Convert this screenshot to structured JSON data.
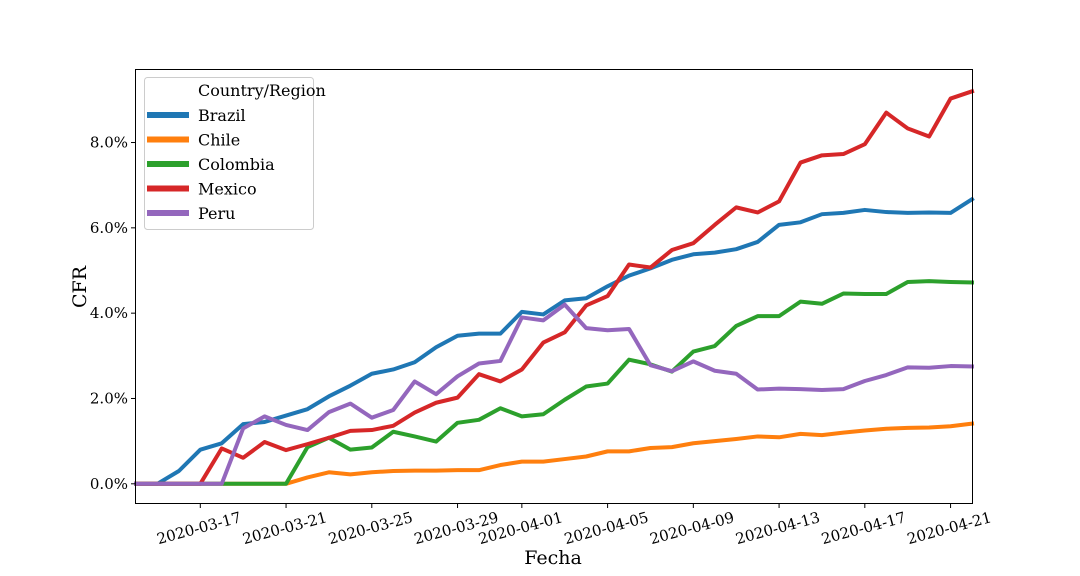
{
  "chart_data": {
    "type": "line",
    "xlabel": "Fecha",
    "ylabel": "CFR",
    "x": [
      "2020-03-14",
      "2020-03-15",
      "2020-03-16",
      "2020-03-17",
      "2020-03-18",
      "2020-03-19",
      "2020-03-20",
      "2020-03-21",
      "2020-03-22",
      "2020-03-23",
      "2020-03-24",
      "2020-03-25",
      "2020-03-26",
      "2020-03-27",
      "2020-03-28",
      "2020-03-29",
      "2020-03-30",
      "2020-03-31",
      "2020-04-01",
      "2020-04-02",
      "2020-04-03",
      "2020-04-04",
      "2020-04-05",
      "2020-04-06",
      "2020-04-07",
      "2020-04-08",
      "2020-04-09",
      "2020-04-10",
      "2020-04-11",
      "2020-04-12",
      "2020-04-13",
      "2020-04-14",
      "2020-04-15",
      "2020-04-16",
      "2020-04-17",
      "2020-04-18",
      "2020-04-19",
      "2020-04-20",
      "2020-04-21",
      "2020-04-22"
    ],
    "xticks": [
      "2020-03-17",
      "2020-03-21",
      "2020-03-25",
      "2020-03-29",
      "2020-04-01",
      "2020-04-05",
      "2020-04-09",
      "2020-04-13",
      "2020-04-17",
      "2020-04-21"
    ],
    "xlim": [
      "2020-03-14",
      "2020-04-22"
    ],
    "ylim": [
      -0.45,
      9.7
    ],
    "yticks": [
      0,
      2,
      4,
      6,
      8
    ],
    "ytick_labels": [
      "0.0%",
      "2.0%",
      "4.0%",
      "6.0%",
      "8.0%"
    ],
    "legend_title": "Country/Region",
    "legend_position": "top-left",
    "grid": false,
    "series": [
      {
        "name": "Brazil",
        "color": "#1f77b4",
        "values": [
          0,
          0,
          0.3,
          0.8,
          0.95,
          1.4,
          1.45,
          1.6,
          1.75,
          2.05,
          2.3,
          2.58,
          2.68,
          2.85,
          3.2,
          3.47,
          3.52,
          3.52,
          4.03,
          3.97,
          4.3,
          4.35,
          4.63,
          4.88,
          5.05,
          5.25,
          5.38,
          5.42,
          5.5,
          5.67,
          6.07,
          6.13,
          6.32,
          6.35,
          6.42,
          6.37,
          6.35,
          6.36,
          6.35,
          6.67
        ]
      },
      {
        "name": "Chile",
        "color": "#ff7f0e",
        "values": [
          0,
          0,
          0,
          0,
          0,
          0,
          0,
          0,
          0.15,
          0.27,
          0.22,
          0.27,
          0.3,
          0.31,
          0.31,
          0.32,
          0.32,
          0.44,
          0.52,
          0.52,
          0.58,
          0.64,
          0.76,
          0.76,
          0.84,
          0.86,
          0.95,
          1,
          1.05,
          1.11,
          1.09,
          1.17,
          1.14,
          1.2,
          1.25,
          1.29,
          1.31,
          1.32,
          1.35,
          1.41
        ]
      },
      {
        "name": "Colombia",
        "color": "#2ca02c",
        "values": [
          0,
          0,
          0,
          0,
          0,
          0,
          0,
          0,
          0.86,
          1.08,
          0.8,
          0.85,
          1.22,
          1.11,
          0.99,
          1.43,
          1.5,
          1.77,
          1.58,
          1.63,
          1.97,
          2.28,
          2.35,
          2.91,
          2.8,
          2.63,
          3.1,
          3.23,
          3.7,
          3.93,
          3.93,
          4.27,
          4.22,
          4.46,
          4.45,
          4.45,
          4.73,
          4.75,
          4.73,
          4.72
        ]
      },
      {
        "name": "Mexico",
        "color": "#d62728",
        "values": [
          0,
          0,
          0,
          0,
          0.83,
          0.61,
          0.98,
          0.79,
          0.93,
          1.08,
          1.24,
          1.26,
          1.36,
          1.67,
          1.9,
          2.02,
          2.57,
          2.4,
          2.68,
          3.31,
          3.55,
          4.18,
          4.4,
          5.14,
          5.07,
          5.48,
          5.64,
          6.07,
          6.48,
          6.36,
          6.62,
          7.53,
          7.7,
          7.73,
          7.96,
          8.7,
          8.33,
          8.14,
          9.03,
          9.2
        ]
      },
      {
        "name": "Peru",
        "color": "#9467bd",
        "values": [
          0,
          0,
          0,
          0,
          0,
          1.3,
          1.58,
          1.38,
          1.26,
          1.68,
          1.88,
          1.55,
          1.73,
          2.4,
          2.1,
          2.52,
          2.82,
          2.88,
          3.9,
          3.83,
          4.2,
          3.65,
          3.6,
          3.63,
          2.78,
          2.64,
          2.87,
          2.65,
          2.58,
          2.21,
          2.23,
          2.22,
          2.2,
          2.22,
          2.41,
          2.55,
          2.73,
          2.72,
          2.76,
          2.75
        ]
      }
    ]
  }
}
